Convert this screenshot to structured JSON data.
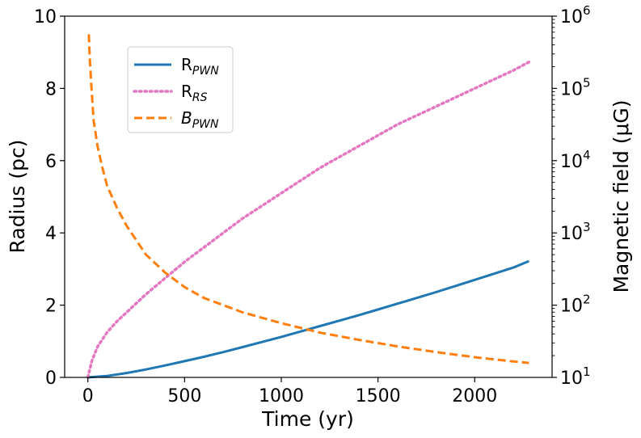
{
  "chart_data": {
    "type": "line",
    "xlabel": "Time (yr)",
    "ylabel_left": "Radius (pc)",
    "ylabel_right": "Magnetic field (μG)",
    "xlim": [
      -120,
      2400
    ],
    "ylim_left": [
      0,
      10
    ],
    "ylim_right_log10": [
      1,
      6
    ],
    "x_ticks": [
      0,
      500,
      1000,
      1500,
      2000
    ],
    "x_tick_labels": [
      "0",
      "500",
      "1000",
      "1500",
      "2000"
    ],
    "y_left_ticks": [
      0,
      2,
      4,
      6,
      8,
      10
    ],
    "y_left_tick_labels": [
      "0",
      "2",
      "4",
      "6",
      "8",
      "10"
    ],
    "y_right_ticks": [
      1,
      2,
      3,
      4,
      5,
      6
    ],
    "y_right_tick_labels": [
      {
        "base": "10",
        "exp": "1"
      },
      {
        "base": "10",
        "exp": "2"
      },
      {
        "base": "10",
        "exp": "3"
      },
      {
        "base": "10",
        "exp": "4"
      },
      {
        "base": "10",
        "exp": "5"
      },
      {
        "base": "10",
        "exp": "6"
      }
    ],
    "legend_position": "upper-left",
    "series": [
      {
        "name": "R_PWN",
        "label_main": "R",
        "label_sub": "PWN",
        "label_italic_main": false,
        "axis": "left",
        "color": "#1f77b4",
        "style": "solid",
        "x": [
          0,
          100,
          200,
          300,
          400,
          500,
          600,
          700,
          800,
          900,
          1000,
          1100,
          1200,
          1300,
          1400,
          1500,
          1600,
          1700,
          1800,
          1900,
          2000,
          2100,
          2200,
          2280
        ],
        "y": [
          0,
          0.04,
          0.12,
          0.22,
          0.33,
          0.45,
          0.57,
          0.7,
          0.84,
          0.98,
          1.12,
          1.27,
          1.42,
          1.57,
          1.72,
          1.88,
          2.04,
          2.2,
          2.36,
          2.53,
          2.7,
          2.87,
          3.04,
          3.22
        ]
      },
      {
        "name": "R_RS",
        "label_main": "R",
        "label_sub": "RS",
        "label_italic_main": false,
        "axis": "left",
        "color": "#e377c2",
        "style": "dotted",
        "x": [
          0,
          20,
          50,
          100,
          150,
          200,
          300,
          400,
          500,
          600,
          700,
          800,
          900,
          1000,
          1100,
          1200,
          1300,
          1400,
          1500,
          1600,
          1700,
          1800,
          1900,
          2000,
          2100,
          2200,
          2280
        ],
        "y": [
          0,
          0.45,
          0.85,
          1.25,
          1.55,
          1.8,
          2.3,
          2.75,
          3.2,
          3.6,
          4.0,
          4.4,
          4.75,
          5.1,
          5.45,
          5.8,
          6.1,
          6.4,
          6.7,
          7.0,
          7.25,
          7.5,
          7.75,
          8.0,
          8.25,
          8.5,
          8.73
        ]
      },
      {
        "name": "B_PWN",
        "label_main": "B",
        "label_sub": "PWN",
        "label_italic_main": true,
        "axis": "right",
        "color": "#ff7f0e",
        "style": "dashed",
        "x": [
          5,
          10,
          20,
          30,
          50,
          75,
          100,
          150,
          200,
          300,
          400,
          500,
          600,
          800,
          1000,
          1200,
          1400,
          1600,
          1800,
          2000,
          2200,
          2280
        ],
        "log10_y": [
          5.75,
          5.4,
          4.95,
          4.55,
          4.2,
          3.9,
          3.65,
          3.35,
          3.1,
          2.7,
          2.45,
          2.25,
          2.1,
          1.9,
          1.75,
          1.62,
          1.52,
          1.43,
          1.35,
          1.28,
          1.22,
          1.2
        ]
      }
    ]
  }
}
